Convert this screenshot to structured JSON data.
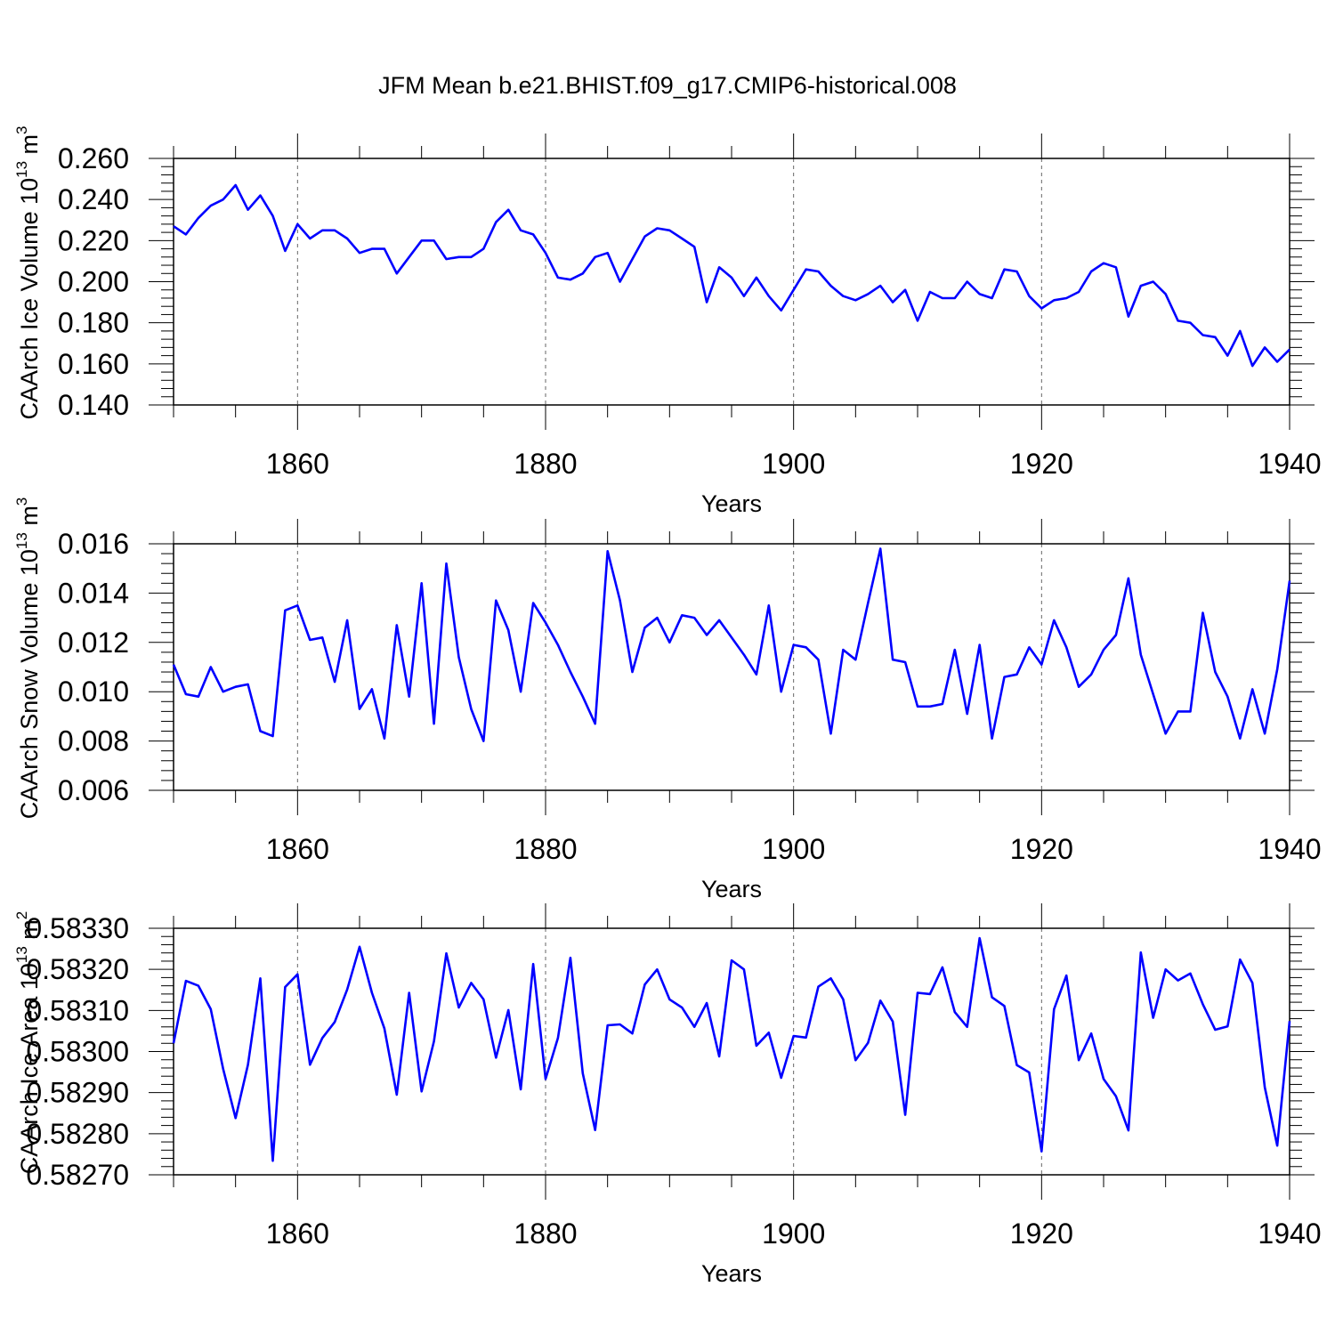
{
  "chart_data": {
    "title": "JFM Mean b.e21.BHIST.f09_g17.CMIP6-historical.008",
    "type": "line",
    "years_start": 1850,
    "panels": [
      {
        "type": "line",
        "ylabel": "CAArch Ice Volume 10",
        "yunit_exp": "13",
        "yunit_tail": " m",
        "yunit_pow": "3",
        "xlabel": "Years",
        "xlim": [
          1850,
          1940
        ],
        "ylim": [
          0.14,
          0.26
        ],
        "yticks": [
          0.14,
          0.16,
          0.18,
          0.2,
          0.22,
          0.24,
          0.26
        ],
        "ytick_labels": [
          "0.140",
          "0.160",
          "0.180",
          "0.200",
          "0.220",
          "0.240",
          "0.260"
        ],
        "xticks": [
          1860,
          1880,
          1900,
          1920,
          1940
        ],
        "xtick_labels": [
          "1860",
          "1880",
          "1900",
          "1920",
          "1940"
        ],
        "color": "#0000ff",
        "values": [
          0.227,
          0.223,
          0.231,
          0.237,
          0.24,
          0.247,
          0.235,
          0.242,
          0.232,
          0.215,
          0.228,
          0.221,
          0.225,
          0.225,
          0.221,
          0.214,
          0.216,
          0.216,
          0.204,
          0.212,
          0.22,
          0.22,
          0.211,
          0.212,
          0.212,
          0.216,
          0.229,
          0.235,
          0.225,
          0.223,
          0.214,
          0.202,
          0.201,
          0.204,
          0.212,
          0.214,
          0.2,
          0.211,
          0.222,
          0.226,
          0.225,
          0.221,
          0.217,
          0.19,
          0.207,
          0.202,
          0.193,
          0.202,
          0.193,
          0.186,
          0.196,
          0.206,
          0.205,
          0.198,
          0.193,
          0.191,
          0.194,
          0.198,
          0.19,
          0.196,
          0.181,
          0.195,
          0.192,
          0.192,
          0.2,
          0.194,
          0.192,
          0.206,
          0.205,
          0.193,
          0.187,
          0.191,
          0.192,
          0.195,
          0.205,
          0.209,
          0.207,
          0.183,
          0.198,
          0.2,
          0.194,
          0.181,
          0.18,
          0.174,
          0.173,
          0.164,
          0.176,
          0.159,
          0.168,
          0.161,
          0.167
        ]
      },
      {
        "type": "line",
        "ylabel": "CAArch Snow Volume 10",
        "yunit_exp": "13",
        "yunit_tail": " m",
        "yunit_pow": "3",
        "xlabel": "Years",
        "xlim": [
          1850,
          1940
        ],
        "ylim": [
          0.006,
          0.016
        ],
        "yticks": [
          0.006,
          0.008,
          0.01,
          0.012,
          0.014,
          0.016
        ],
        "ytick_labels": [
          "0.006",
          "0.008",
          "0.010",
          "0.012",
          "0.014",
          "0.016"
        ],
        "xticks": [
          1860,
          1880,
          1900,
          1920,
          1940
        ],
        "xtick_labels": [
          "1860",
          "1880",
          "1900",
          "1920",
          "1940"
        ],
        "color": "#0000ff",
        "values": [
          0.0111,
          0.0099,
          0.0098,
          0.011,
          0.01,
          0.0102,
          0.0103,
          0.0084,
          0.0082,
          0.0133,
          0.0135,
          0.0121,
          0.0122,
          0.0104,
          0.0129,
          0.0093,
          0.0101,
          0.0081,
          0.0127,
          0.0098,
          0.0144,
          0.0087,
          0.0152,
          0.0114,
          0.0093,
          0.008,
          0.0137,
          0.0125,
          0.01,
          0.0136,
          0.0128,
          0.0119,
          0.0108,
          0.0098,
          0.0087,
          0.0157,
          0.0137,
          0.0108,
          0.0126,
          0.013,
          0.012,
          0.0131,
          0.013,
          0.0123,
          0.0129,
          0.0122,
          0.0115,
          0.0107,
          0.0135,
          0.01,
          0.0119,
          0.0118,
          0.0113,
          0.0083,
          0.0117,
          0.0113,
          0.0136,
          0.0158,
          0.0113,
          0.0112,
          0.0094,
          0.0094,
          0.0095,
          0.0117,
          0.0091,
          0.0119,
          0.0081,
          0.0106,
          0.0107,
          0.0118,
          0.0111,
          0.0129,
          0.0118,
          0.0102,
          0.0107,
          0.0117,
          0.0123,
          0.0146,
          0.0115,
          0.0099,
          0.0083,
          0.0092,
          0.0092,
          0.0132,
          0.0108,
          0.0098,
          0.0081,
          0.0101,
          0.0083,
          0.0109,
          0.0145
        ]
      },
      {
        "type": "line",
        "ylabel": "CAArch Ice Area 10",
        "yunit_exp": "13",
        "yunit_tail": " m",
        "yunit_pow": "2",
        "xlabel": "Years",
        "xlim": [
          1850,
          1940
        ],
        "ylim": [
          0.5827,
          0.5833
        ],
        "yticks": [
          0.5827,
          0.5828,
          0.5829,
          0.583,
          0.5831,
          0.5832,
          0.5833
        ],
        "ytick_labels": [
          "0.58270",
          "0.58280",
          "0.58290",
          "0.58300",
          "0.58310",
          "0.58320",
          "0.58330"
        ],
        "xticks": [
          1860,
          1880,
          1900,
          1920,
          1940
        ],
        "xtick_labels": [
          "1860",
          "1880",
          "1900",
          "1920",
          "1940"
        ],
        "color": "#0000ff",
        "values": [
          0.58302,
          0.583172,
          0.58316,
          0.583103,
          0.582958,
          0.582838,
          0.582968,
          0.583178,
          0.582734,
          0.583157,
          0.583188,
          0.582968,
          0.583033,
          0.583072,
          0.583151,
          0.583255,
          0.583143,
          0.583056,
          0.582895,
          0.583143,
          0.582903,
          0.583025,
          0.583239,
          0.583107,
          0.583167,
          0.583127,
          0.582985,
          0.583101,
          0.582908,
          0.583213,
          0.582933,
          0.583033,
          0.583228,
          0.582947,
          0.582809,
          0.583064,
          0.583066,
          0.583044,
          0.583163,
          0.5832,
          0.583127,
          0.583107,
          0.58306,
          0.583118,
          0.582988,
          0.583222,
          0.5832,
          0.583014,
          0.583046,
          0.582936,
          0.583038,
          0.583034,
          0.583158,
          0.583178,
          0.583127,
          0.582979,
          0.583021,
          0.583124,
          0.583073,
          0.582846,
          0.583143,
          0.58314,
          0.583205,
          0.583096,
          0.58306,
          0.583276,
          0.583132,
          0.583111,
          0.582967,
          0.582949,
          0.582757,
          0.583103,
          0.583185,
          0.582979,
          0.583044,
          0.582933,
          0.582891,
          0.582808,
          0.583241,
          0.583082,
          0.5832,
          0.583173,
          0.58319,
          0.583115,
          0.583053,
          0.583061,
          0.583224,
          0.583167,
          0.582913,
          0.582771,
          0.583074
        ]
      }
    ]
  }
}
